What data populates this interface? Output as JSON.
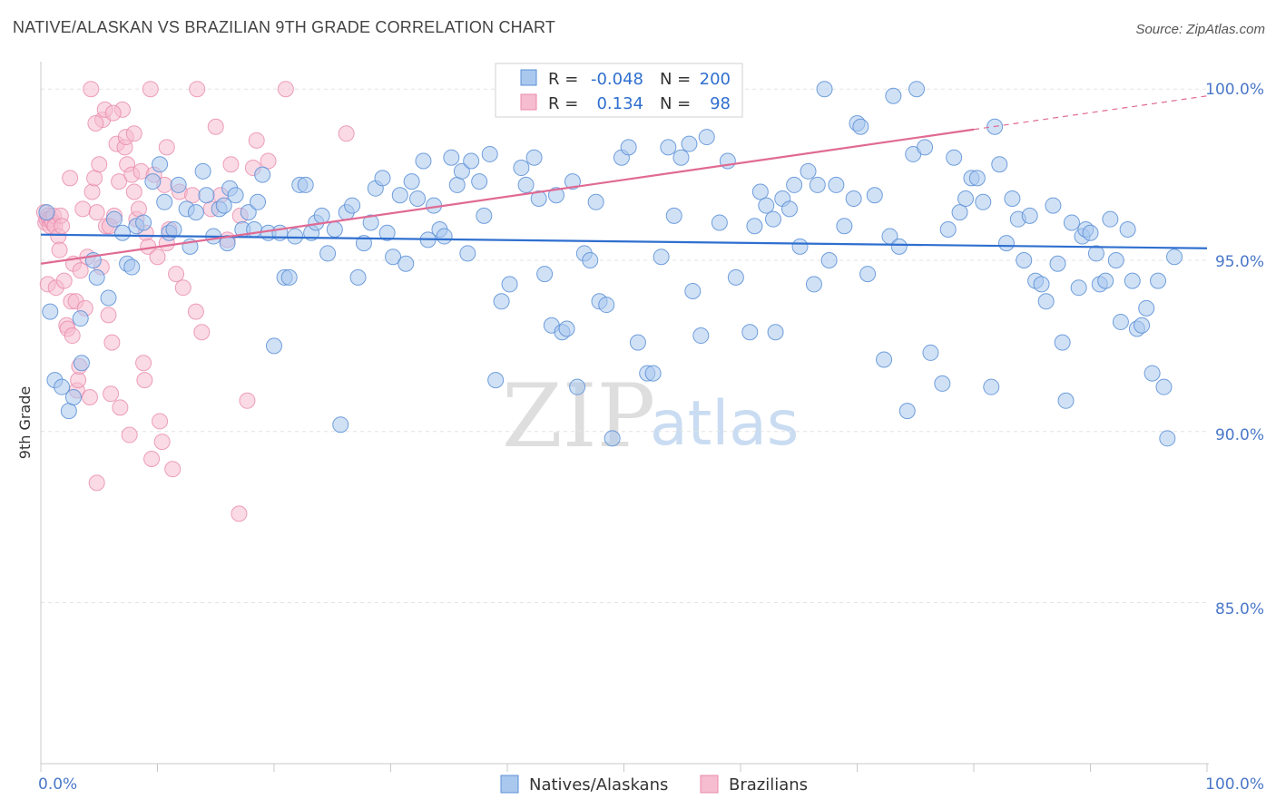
{
  "header": {
    "title": "NATIVE/ALASKAN VS BRAZILIAN 9TH GRADE CORRELATION CHART",
    "source": "Source: ZipAtlas.com"
  },
  "watermark": {
    "zip": "ZIP",
    "atlas": "atlas"
  },
  "colors": {
    "blue_fill": "#aac8ee",
    "blue_stroke": "#5b8fd6",
    "blue_line": "#2f6fcf",
    "pink_fill": "#f6bcd0",
    "pink_stroke": "#e98aab",
    "pink_line": "#e06a93",
    "tick_text": "#4a78c8",
    "grid": "#e3e3e3"
  },
  "stats_legend": {
    "rows": [
      {
        "r_label": "R =",
        "r_value": "-0.048",
        "n_label": "N =",
        "n_value": "200"
      },
      {
        "r_label": "R =",
        "r_value": "0.134",
        "n_label": "N =",
        "n_value": "98"
      }
    ]
  },
  "bottom_legend": {
    "items": [
      "Natives/Alaskans",
      "Brazilians"
    ]
  },
  "chart_data": {
    "type": "scatter",
    "title": "NATIVE/ALASKAN VS BRAZILIAN 9TH GRADE CORRELATION CHART",
    "xlabel": "",
    "ylabel": "9th Grade",
    "xlim": [
      0,
      100
    ],
    "ylim": [
      80.3,
      100.8
    ],
    "x_tick_labels": [
      "0.0%",
      "100.0%"
    ],
    "y_ticks": [
      85,
      90,
      95,
      100
    ],
    "y_tick_labels": [
      "85.0%",
      "90.0%",
      "95.0%",
      "100.0%"
    ],
    "series": [
      {
        "name": "Natives/Alaskans",
        "r": -0.048,
        "n": 200,
        "trend": {
          "x": [
            0,
            100
          ],
          "y": [
            95.75,
            95.35
          ]
        },
        "points": [
          [
            0.5,
            96.4
          ],
          [
            0.8,
            93.5
          ],
          [
            1.2,
            91.5
          ],
          [
            1.8,
            91.3
          ],
          [
            2.4,
            90.6
          ],
          [
            2.8,
            91.0
          ],
          [
            3.5,
            92.0
          ],
          [
            3.4,
            93.3
          ],
          [
            4.5,
            95.0
          ],
          [
            4.8,
            94.5
          ],
          [
            5.8,
            93.9
          ],
          [
            6.3,
            96.2
          ],
          [
            7.0,
            95.8
          ],
          [
            7.4,
            94.9
          ],
          [
            7.8,
            94.8
          ],
          [
            8.2,
            96.0
          ],
          [
            8.8,
            96.1
          ],
          [
            9.6,
            97.3
          ],
          [
            10.2,
            97.8
          ],
          [
            10.6,
            96.7
          ],
          [
            11.0,
            95.8
          ],
          [
            11.4,
            95.9
          ],
          [
            11.8,
            97.2
          ],
          [
            12.5,
            96.5
          ],
          [
            12.8,
            95.4
          ],
          [
            13.3,
            96.4
          ],
          [
            13.9,
            97.6
          ],
          [
            14.2,
            96.9
          ],
          [
            14.8,
            95.7
          ],
          [
            15.3,
            96.5
          ],
          [
            15.7,
            96.6
          ],
          [
            16.0,
            95.5
          ],
          [
            16.2,
            97.1
          ],
          [
            16.7,
            96.9
          ],
          [
            17.3,
            95.9
          ],
          [
            17.8,
            96.4
          ],
          [
            18.3,
            95.9
          ],
          [
            18.6,
            96.7
          ],
          [
            19.0,
            97.5
          ],
          [
            19.5,
            95.8
          ],
          [
            20.0,
            92.5
          ],
          [
            20.5,
            95.8
          ],
          [
            20.9,
            94.5
          ],
          [
            21.3,
            94.5
          ],
          [
            21.8,
            95.7
          ],
          [
            22.2,
            97.2
          ],
          [
            22.7,
            97.2
          ],
          [
            23.2,
            95.8
          ],
          [
            23.6,
            96.1
          ],
          [
            24.1,
            96.3
          ],
          [
            24.6,
            95.2
          ],
          [
            25.2,
            95.9
          ],
          [
            25.7,
            90.2
          ],
          [
            26.2,
            96.4
          ],
          [
            26.7,
            96.6
          ],
          [
            27.2,
            94.5
          ],
          [
            27.7,
            95.5
          ],
          [
            28.3,
            96.1
          ],
          [
            28.7,
            97.1
          ],
          [
            29.3,
            97.4
          ],
          [
            29.7,
            95.8
          ],
          [
            30.2,
            95.1
          ],
          [
            30.8,
            96.9
          ],
          [
            31.3,
            94.9
          ],
          [
            31.8,
            97.3
          ],
          [
            32.3,
            96.8
          ],
          [
            32.8,
            97.9
          ],
          [
            33.2,
            95.6
          ],
          [
            33.7,
            96.6
          ],
          [
            34.2,
            95.9
          ],
          [
            34.6,
            95.7
          ],
          [
            35.2,
            98.0
          ],
          [
            35.7,
            97.2
          ],
          [
            36.1,
            97.6
          ],
          [
            36.6,
            95.2
          ],
          [
            36.9,
            97.9
          ],
          [
            37.6,
            97.3
          ],
          [
            38.0,
            96.3
          ],
          [
            38.5,
            98.1
          ],
          [
            39.0,
            91.5
          ],
          [
            39.5,
            93.8
          ],
          [
            40.2,
            94.3
          ],
          [
            41.2,
            97.7
          ],
          [
            41.6,
            97.2
          ],
          [
            42.3,
            98.0
          ],
          [
            42.7,
            96.8
          ],
          [
            43.2,
            94.6
          ],
          [
            43.8,
            93.1
          ],
          [
            44.2,
            96.9
          ],
          [
            44.7,
            92.9
          ],
          [
            45.1,
            93.0
          ],
          [
            45.6,
            97.3
          ],
          [
            46.0,
            91.3
          ],
          [
            46.6,
            95.2
          ],
          [
            47.1,
            95.0
          ],
          [
            47.6,
            96.7
          ],
          [
            47.9,
            93.8
          ],
          [
            48.5,
            93.7
          ],
          [
            49.0,
            89.8
          ],
          [
            49.8,
            98.0
          ],
          [
            50.4,
            98.3
          ],
          [
            51.2,
            92.6
          ],
          [
            52.0,
            91.7
          ],
          [
            52.5,
            91.7
          ],
          [
            53.2,
            95.1
          ],
          [
            53.8,
            98.3
          ],
          [
            54.3,
            96.3
          ],
          [
            54.9,
            98.0
          ],
          [
            55.6,
            98.4
          ],
          [
            55.9,
            94.1
          ],
          [
            56.6,
            92.8
          ],
          [
            57.1,
            98.6
          ],
          [
            58.2,
            96.1
          ],
          [
            58.9,
            97.9
          ],
          [
            59.6,
            94.5
          ],
          [
            60.8,
            92.9
          ],
          [
            61.2,
            96.0
          ],
          [
            61.7,
            97.0
          ],
          [
            62.2,
            96.6
          ],
          [
            62.8,
            96.2
          ],
          [
            63.0,
            92.9
          ],
          [
            63.6,
            96.8
          ],
          [
            64.2,
            96.5
          ],
          [
            64.6,
            97.2
          ],
          [
            65.1,
            95.4
          ],
          [
            65.8,
            97.6
          ],
          [
            66.3,
            94.3
          ],
          [
            66.6,
            97.2
          ],
          [
            67.2,
            100.0
          ],
          [
            67.6,
            95.0
          ],
          [
            68.2,
            97.2
          ],
          [
            68.9,
            96.0
          ],
          [
            69.7,
            96.8
          ],
          [
            70.0,
            99.0
          ],
          [
            70.3,
            98.9
          ],
          [
            70.9,
            94.6
          ],
          [
            71.5,
            96.9
          ],
          [
            72.3,
            92.1
          ],
          [
            72.8,
            95.7
          ],
          [
            73.1,
            99.8
          ],
          [
            73.6,
            95.4
          ],
          [
            74.3,
            90.6
          ],
          [
            74.8,
            98.1
          ],
          [
            75.1,
            100.0
          ],
          [
            75.8,
            98.3
          ],
          [
            76.3,
            92.3
          ],
          [
            77.3,
            91.4
          ],
          [
            77.8,
            95.9
          ],
          [
            78.3,
            98.0
          ],
          [
            78.8,
            96.4
          ],
          [
            79.3,
            96.8
          ],
          [
            79.8,
            97.4
          ],
          [
            80.3,
            97.4
          ],
          [
            80.8,
            96.7
          ],
          [
            81.5,
            91.3
          ],
          [
            81.8,
            98.9
          ],
          [
            82.2,
            97.8
          ],
          [
            82.8,
            95.5
          ],
          [
            83.3,
            96.8
          ],
          [
            83.8,
            96.2
          ],
          [
            84.3,
            95.0
          ],
          [
            84.8,
            96.3
          ],
          [
            85.3,
            94.4
          ],
          [
            85.8,
            94.3
          ],
          [
            86.2,
            93.8
          ],
          [
            86.8,
            96.6
          ],
          [
            87.2,
            94.9
          ],
          [
            87.6,
            92.6
          ],
          [
            87.9,
            90.9
          ],
          [
            88.4,
            96.1
          ],
          [
            89.0,
            94.2
          ],
          [
            89.3,
            95.7
          ],
          [
            89.6,
            95.9
          ],
          [
            90.0,
            95.8
          ],
          [
            90.5,
            95.2
          ],
          [
            90.8,
            94.3
          ],
          [
            91.3,
            94.4
          ],
          [
            91.7,
            96.2
          ],
          [
            92.2,
            95.0
          ],
          [
            92.6,
            93.2
          ],
          [
            93.2,
            95.9
          ],
          [
            93.6,
            94.4
          ],
          [
            94.0,
            93.0
          ],
          [
            94.4,
            93.1
          ],
          [
            94.8,
            93.6
          ],
          [
            95.3,
            91.7
          ],
          [
            95.8,
            94.4
          ],
          [
            96.3,
            91.3
          ],
          [
            96.6,
            89.8
          ],
          [
            97.2,
            95.1
          ]
        ]
      },
      {
        "name": "Brazilians",
        "r": 0.134,
        "n": 98,
        "trend": {
          "x": [
            0,
            100
          ],
          "y": [
            94.9,
            99.8
          ]
        },
        "points": [
          [
            0.3,
            96.4
          ],
          [
            0.4,
            96.1
          ],
          [
            0.5,
            96.2
          ],
          [
            0.6,
            96.3
          ],
          [
            0.6,
            94.3
          ],
          [
            0.7,
            96.2
          ],
          [
            0.8,
            96.0
          ],
          [
            0.9,
            96.2
          ],
          [
            1.0,
            96.1
          ],
          [
            1.1,
            96.3
          ],
          [
            1.2,
            96.0
          ],
          [
            1.3,
            94.2
          ],
          [
            1.5,
            95.7
          ],
          [
            1.6,
            95.3
          ],
          [
            1.7,
            96.3
          ],
          [
            1.8,
            96.0
          ],
          [
            2.0,
            94.4
          ],
          [
            2.2,
            93.1
          ],
          [
            2.3,
            93.0
          ],
          [
            2.5,
            97.4
          ],
          [
            2.6,
            93.8
          ],
          [
            2.7,
            92.8
          ],
          [
            2.8,
            94.9
          ],
          [
            3.0,
            93.8
          ],
          [
            3.1,
            91.2
          ],
          [
            3.2,
            91.5
          ],
          [
            3.3,
            91.9
          ],
          [
            3.4,
            94.7
          ],
          [
            3.6,
            96.5
          ],
          [
            3.8,
            93.6
          ],
          [
            4.0,
            95.1
          ],
          [
            4.2,
            91.0
          ],
          [
            4.4,
            97.0
          ],
          [
            4.6,
            97.4
          ],
          [
            4.8,
            96.4
          ],
          [
            5.0,
            97.8
          ],
          [
            5.2,
            94.8
          ],
          [
            5.3,
            99.1
          ],
          [
            5.5,
            99.4
          ],
          [
            5.6,
            96.0
          ],
          [
            5.8,
            93.4
          ],
          [
            6.0,
            91.1
          ],
          [
            6.1,
            92.6
          ],
          [
            6.3,
            96.3
          ],
          [
            6.5,
            98.4
          ],
          [
            6.7,
            97.3
          ],
          [
            6.8,
            90.7
          ],
          [
            7.0,
            99.4
          ],
          [
            7.2,
            98.3
          ],
          [
            7.4,
            97.8
          ],
          [
            7.6,
            89.9
          ],
          [
            7.8,
            97.5
          ],
          [
            8.0,
            97.0
          ],
          [
            8.2,
            96.2
          ],
          [
            8.4,
            96.5
          ],
          [
            8.6,
            97.6
          ],
          [
            8.8,
            92.0
          ],
          [
            8.9,
            91.5
          ],
          [
            9.0,
            95.8
          ],
          [
            9.2,
            95.4
          ],
          [
            9.5,
            89.2
          ],
          [
            9.7,
            97.5
          ],
          [
            10.0,
            95.1
          ],
          [
            10.2,
            90.3
          ],
          [
            10.4,
            89.7
          ],
          [
            10.6,
            97.2
          ],
          [
            10.8,
            95.5
          ],
          [
            11.0,
            95.9
          ],
          [
            11.6,
            94.6
          ],
          [
            11.9,
            97.0
          ],
          [
            12.2,
            94.2
          ],
          [
            13.0,
            96.9
          ],
          [
            13.3,
            93.5
          ],
          [
            13.8,
            92.9
          ],
          [
            14.6,
            96.5
          ],
          [
            15.4,
            96.9
          ],
          [
            16.0,
            95.6
          ],
          [
            17.0,
            87.6
          ],
          [
            17.7,
            90.9
          ],
          [
            18.2,
            97.7
          ],
          [
            19.5,
            97.9
          ],
          [
            4.3,
            100.0
          ],
          [
            4.7,
            99.0
          ],
          [
            6.2,
            99.3
          ],
          [
            7.3,
            98.6
          ],
          [
            8.0,
            98.7
          ],
          [
            9.4,
            100.0
          ],
          [
            10.8,
            98.3
          ],
          [
            11.3,
            88.9
          ],
          [
            13.4,
            100.0
          ],
          [
            15.0,
            98.9
          ],
          [
            16.3,
            97.8
          ],
          [
            17.1,
            96.3
          ],
          [
            18.5,
            98.5
          ],
          [
            21.0,
            100.0
          ],
          [
            26.2,
            98.7
          ],
          [
            4.8,
            88.5
          ],
          [
            5.9,
            96.0
          ]
        ]
      }
    ]
  }
}
